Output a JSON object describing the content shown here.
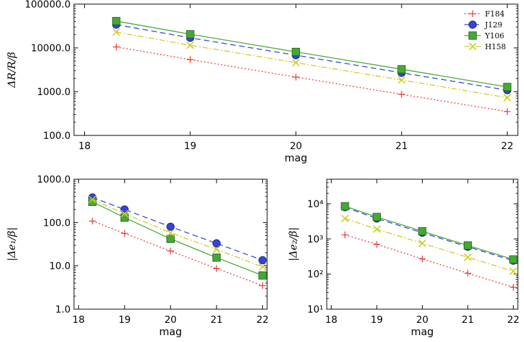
{
  "chart_data": [
    {
      "type": "line",
      "panel": "top",
      "x": [
        18.3,
        19,
        20,
        21,
        22
      ],
      "xlim": [
        17.9,
        22.1
      ],
      "xticks": [
        "18",
        "19",
        "20",
        "21",
        "22"
      ],
      "xlabel": "mag",
      "ylabel": "ΔR/R/β",
      "yscale": "log",
      "ylim": [
        100,
        100000
      ],
      "yticks": [
        {
          "v": 100,
          "label": "100.0"
        },
        {
          "v": 1000,
          "label": "1000.0"
        },
        {
          "v": 10000,
          "label": "10000.0"
        },
        {
          "v": 100000,
          "label": "100000.0"
        }
      ],
      "legend": "top-right",
      "series": [
        {
          "name": "F184",
          "color": "#ee3333",
          "marker": "plus",
          "dash": "2,3",
          "values": [
            10500,
            5400,
            2150,
            870,
            350
          ]
        },
        {
          "name": "J129",
          "color": "#3344dd",
          "marker": "circle",
          "dash": "8,5",
          "values": [
            34000,
            17000,
            6800,
            2700,
            1080
          ]
        },
        {
          "name": "Y106",
          "color": "#44aa33",
          "marker": "square",
          "dash": "",
          "values": [
            41000,
            20500,
            8100,
            3250,
            1280
          ]
        },
        {
          "name": "H158",
          "color": "#cccc22",
          "marker": "x",
          "dash": "8,3,2,3",
          "values": [
            23000,
            11500,
            4600,
            1850,
            730
          ]
        }
      ]
    },
    {
      "type": "line",
      "panel": "bottom-left",
      "x": [
        18.3,
        19,
        20,
        21,
        22
      ],
      "xlim": [
        17.9,
        22.1
      ],
      "xticks": [
        "18",
        "19",
        "20",
        "21",
        "22"
      ],
      "xlabel": "mag",
      "ylabel": "|Δe₁/β|",
      "yscale": "log",
      "ylim": [
        1,
        1000
      ],
      "yticks": [
        {
          "v": 1,
          "label": "1.0"
        },
        {
          "v": 10,
          "label": "10.0"
        },
        {
          "v": 100,
          "label": "100.0"
        },
        {
          "v": 1000,
          "label": "1000.0"
        }
      ],
      "series": [
        {
          "name": "F184",
          "color": "#ee3333",
          "marker": "plus",
          "dash": "2,3",
          "values": [
            108,
            56,
            22,
            8.7,
            3.5
          ]
        },
        {
          "name": "J129",
          "color": "#3344dd",
          "marker": "circle",
          "dash": "8,5",
          "values": [
            380,
            200,
            80,
            33,
            13.5
          ]
        },
        {
          "name": "Y106",
          "color": "#44aa33",
          "marker": "square",
          "dash": "",
          "values": [
            300,
            130,
            42,
            15.5,
            6.0
          ]
        },
        {
          "name": "H158",
          "color": "#cccc22",
          "marker": "x",
          "dash": "8,3,2,3",
          "values": [
            340,
            160,
            58,
            24,
            9.5
          ]
        }
      ]
    },
    {
      "type": "line",
      "panel": "bottom-right",
      "x": [
        18.3,
        19,
        20,
        21,
        22
      ],
      "xlim": [
        17.9,
        22.1
      ],
      "xticks": [
        "18",
        "19",
        "20",
        "21",
        "22"
      ],
      "xlabel": "mag",
      "ylabel": "|Δe₂/β|",
      "yscale": "log",
      "ylim": [
        10,
        50000
      ],
      "yticks": [
        {
          "v": 10,
          "label": "10¹"
        },
        {
          "v": 100,
          "label": "10²"
        },
        {
          "v": 1000,
          "label": "10³"
        },
        {
          "v": 10000,
          "label": "10⁴"
        }
      ],
      "series": [
        {
          "name": "F184",
          "color": "#ee3333",
          "marker": "plus",
          "dash": "2,3",
          "values": [
            1300,
            700,
            270,
            105,
            42
          ]
        },
        {
          "name": "J129",
          "color": "#3344dd",
          "marker": "circle",
          "dash": "8,5",
          "values": [
            8000,
            3800,
            1500,
            600,
            240
          ]
        },
        {
          "name": "Y106",
          "color": "#44aa33",
          "marker": "square",
          "dash": "",
          "values": [
            8500,
            4200,
            1650,
            650,
            260
          ]
        },
        {
          "name": "H158",
          "color": "#cccc22",
          "marker": "x",
          "dash": "8,3,2,3",
          "values": [
            3800,
            1900,
            750,
            300,
            120
          ]
        }
      ]
    }
  ]
}
